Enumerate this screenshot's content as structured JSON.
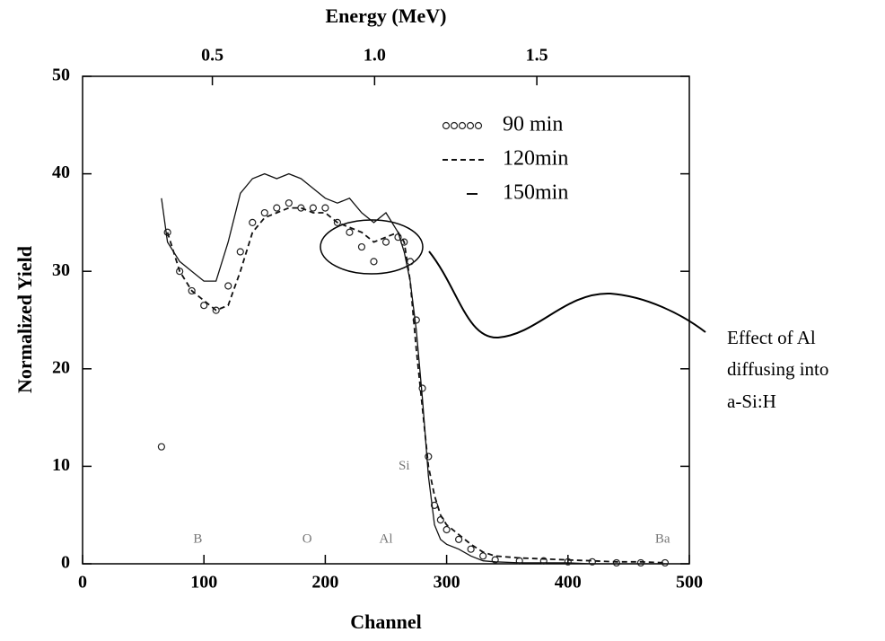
{
  "chart_data": {
    "type": "line",
    "x_label": "Channel",
    "y_label": "Normalized Yield",
    "x2_label": "Energy (MeV)",
    "xlim": [
      0,
      500
    ],
    "xticks": [
      0,
      100,
      200,
      300,
      400,
      500
    ],
    "ylim": [
      0,
      50
    ],
    "yticks": [
      0,
      10,
      20,
      30,
      40,
      50
    ],
    "x2lim": [
      0.1,
      1.97
    ],
    "x2ticks": [
      0.5,
      {
        "value": 1,
        "label": "1.0"
      },
      1.5
    ],
    "x": [
      65,
      70,
      80,
      90,
      100,
      110,
      120,
      130,
      140,
      150,
      160,
      170,
      180,
      190,
      200,
      210,
      220,
      230,
      240,
      250,
      260,
      265,
      270,
      275,
      280,
      285,
      290,
      295,
      300,
      310,
      320,
      330,
      340,
      360,
      380,
      400,
      420,
      440,
      460,
      480
    ],
    "series": [
      {
        "name": "90 min",
        "marker": "circle",
        "color": "#222222",
        "values": [
          12,
          34,
          30,
          28,
          26.5,
          26,
          28.5,
          32,
          35,
          36,
          36.5,
          37,
          36.5,
          36.5,
          36.5,
          35,
          34,
          32.5,
          31,
          33,
          33.5,
          33,
          31,
          25,
          18,
          11,
          6,
          4.5,
          3.5,
          2.5,
          1.5,
          0.8,
          0.4,
          0.3,
          0.3,
          0.2,
          0.2,
          0.1,
          0.1,
          0.1
        ]
      },
      {
        "name": "120min",
        "marker": "dashed",
        "color": "#111111",
        "values": [
          null,
          34,
          30,
          28,
          27,
          26,
          26.5,
          30,
          34,
          35.5,
          36,
          36.5,
          36.5,
          36,
          36,
          35,
          34.5,
          34,
          33,
          33.5,
          34,
          33,
          29,
          22,
          16,
          10,
          7,
          5,
          4,
          3,
          2,
          1.2,
          0.8,
          0.6,
          0.5,
          0.4,
          0.3,
          0.2,
          0.2,
          0.1
        ]
      },
      {
        "name": "150min",
        "marker": "solid",
        "color": "#111111",
        "values": [
          37.5,
          33,
          31,
          30,
          29,
          29,
          33,
          38,
          39.5,
          40,
          39.5,
          40,
          39.5,
          38.5,
          37.5,
          37,
          37.5,
          36,
          35,
          36,
          34,
          32,
          29,
          24,
          17,
          9,
          4,
          2.5,
          2,
          1.5,
          0.8,
          0.3,
          0.2,
          0.1,
          0.1,
          0.1,
          0,
          0,
          0,
          0
        ]
      }
    ],
    "element_labels": [
      "B",
      "O",
      "Al",
      "Si",
      "Ba"
    ],
    "annotation": [
      "Effect of Al",
      "diffusing into",
      "a-Si:H"
    ]
  }
}
